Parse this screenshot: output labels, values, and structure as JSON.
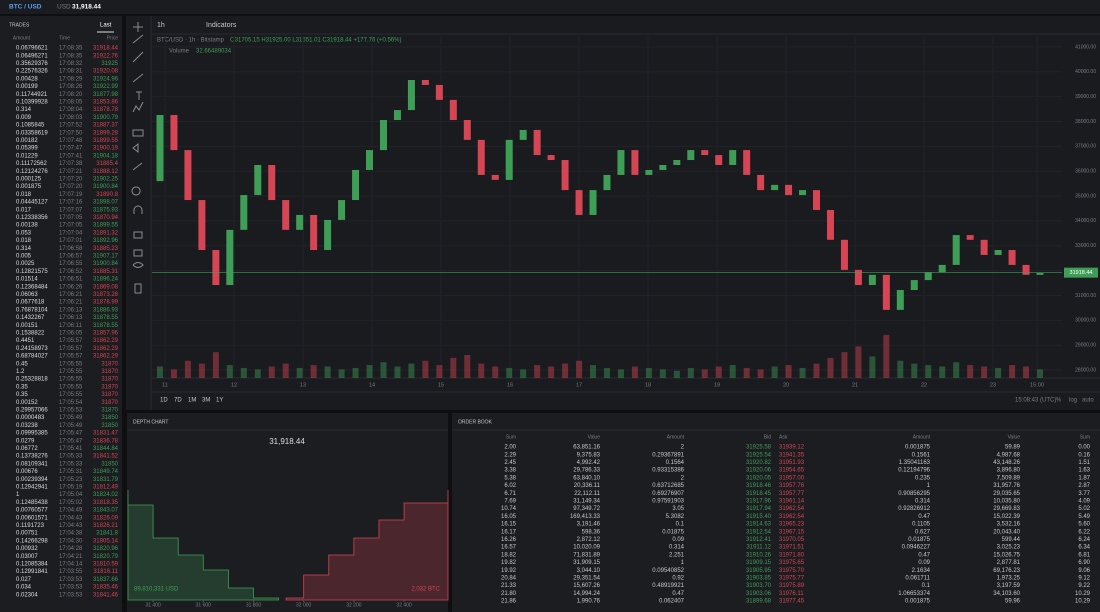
{
  "header": {
    "pair": "BTC / USD",
    "currency": "USD",
    "price": "31,918.44"
  },
  "trades": {
    "title": "TRADES",
    "tab": "Last",
    "columns": [
      "Amount",
      "Time",
      "Price"
    ],
    "rows": [
      [
        "0.06796621",
        "17:08:35",
        31918.44
      ],
      [
        "0.06496271",
        "17:08:35",
        31922.76
      ],
      [
        "0.35629376",
        "17:08:32",
        31925.0
      ],
      [
        "0.22576326",
        "17:08:31",
        31920.08
      ],
      [
        "0.00428",
        "17:08:29",
        31924.96
      ],
      [
        "0.00199",
        "17:08:26",
        31922.99
      ],
      [
        "0.11744921",
        "17:08:20",
        31877.98
      ],
      [
        "0.10399928",
        "17:08:05",
        31853.86
      ],
      [
        "0.314",
        "17:08:04",
        31878.78
      ],
      [
        "0.009",
        "17:08:03",
        31900.79
      ],
      [
        "0.1085845",
        "17:07:52",
        31887.37
      ],
      [
        "0.03358619",
        "17:07:50",
        31899.28
      ],
      [
        "0.00182",
        "17:07:48",
        31899.55
      ],
      [
        "0.05399",
        "17:07:47",
        31900.19
      ],
      [
        "0.01229",
        "17:07:41",
        31904.18
      ],
      [
        "0.11172562",
        "17:07:38",
        31885.4
      ],
      [
        "0.12124276",
        "17:07:21",
        31888.12
      ],
      [
        "0.000125",
        "17:07:20",
        31902.25
      ],
      [
        "0.001875",
        "17:07:20",
        31900.84
      ],
      [
        "0.018",
        "17:07:19",
        31890.8
      ],
      [
        "0.04445127",
        "17:07:16",
        31898.07
      ],
      [
        "0.017",
        "17:07:07",
        31875.93
      ],
      [
        "0.12338356",
        "17:07:05",
        31870.94
      ],
      [
        "0.00138",
        "17:07:05",
        31899.55
      ],
      [
        "0.053",
        "17:07:04",
        31891.32
      ],
      [
        "0.018",
        "17:07:01",
        31892.96
      ],
      [
        "0.314",
        "17:06:58",
        31885.23
      ],
      [
        "0.005",
        "17:06:57",
        31907.17
      ],
      [
        "0.0025",
        "17:06:55",
        31900.84
      ],
      [
        "0.12821575",
        "17:06:52",
        31885.31
      ],
      [
        "0.01514",
        "17:06:51",
        31896.24
      ],
      [
        "0.12368484",
        "17:06:26",
        31869.08
      ],
      [
        "0.06063",
        "17:06:21",
        31873.28
      ],
      [
        "0.0677618",
        "17:06:21",
        31878.99
      ],
      [
        "0.76878104",
        "17:06:13",
        31886.93
      ],
      [
        "0.1432267",
        "17:06:13",
        31878.55
      ],
      [
        "0.00151",
        "17:06:11",
        31878.55
      ],
      [
        "0.1538822",
        "17:06:05",
        31857.96
      ],
      [
        "0.4451",
        "17:05:57",
        31862.29
      ],
      [
        "0.24158973",
        "17:05:57",
        31862.29
      ],
      [
        "0.68784027",
        "17:05:57",
        31862.29
      ],
      [
        "0.45",
        "17:05:55",
        31870.0
      ],
      [
        "1.2",
        "17:05:55",
        31870.0
      ],
      [
        "0.25328818",
        "17:05:55",
        31870.0
      ],
      [
        "0.35",
        "17:05:55",
        31870.0
      ],
      [
        "0.35",
        "17:05:55",
        31870.0
      ],
      [
        "0.00152",
        "17:05:54",
        31870.0
      ],
      [
        "0.29957066",
        "17:05:53",
        31870.0
      ],
      [
        "0.0000483",
        "17:05:49",
        31850.0
      ],
      [
        "0.03238",
        "17:05:49",
        31850.0
      ],
      [
        "0.09995385",
        "17:05:47",
        31831.47
      ],
      [
        "0.0279",
        "17:05:47",
        31836.78
      ],
      [
        "0.06772",
        "17:05:41",
        31844.84
      ],
      [
        "0.13738276",
        "17:05:33",
        31841.52
      ],
      [
        "0.08109341",
        "17:05:33",
        31850.0
      ],
      [
        "0.00676",
        "17:05:31",
        31849.74
      ],
      [
        "0.00239394",
        "17:05:23",
        31831.79
      ],
      [
        "0.12942941",
        "17:05:19",
        31812.49
      ],
      [
        "1",
        "17:05:04",
        31824.02
      ],
      [
        "0.12485438",
        "17:05:02",
        31818.35
      ],
      [
        "0.00760577",
        "17:04:49",
        31843.07
      ],
      [
        "0.00601571",
        "17:04:43",
        31826.09
      ],
      [
        "0.1191723",
        "17:04:43",
        31826.21
      ],
      [
        "0.00751",
        "17:04:38",
        31841.8
      ],
      [
        "0.14266298",
        "17:04:30",
        31805.14
      ],
      [
        "0.00932",
        "17:04:28",
        31820.96
      ],
      [
        "0.03007",
        "17:04:21",
        31820.79
      ],
      [
        "0.12085384",
        "17:04:14",
        31810.59
      ],
      [
        "0.12991841",
        "17:03:55",
        31816.11
      ],
      [
        "0.027",
        "17:03:53",
        31837.66
      ],
      [
        "0.034",
        "17:03:53",
        31835.46
      ],
      [
        "0.02304",
        "17:03:53",
        31841.46
      ]
    ]
  },
  "toolbar": {
    "interval": "1h",
    "indicators": "Indicators"
  },
  "price_chart": {
    "type": "candlestick",
    "legend": "BTC/USD · 1h · Bitstamp",
    "ohlc": "O31705.15 H31925.00 L31651.01 C31918.44 +177.76 (+0.56%)",
    "volume_label": "Volume",
    "volume_value": "32.66489034",
    "up_color": "#3f9e56",
    "down_color": "#d64553",
    "open": 35600,
    "close": [
      38260,
      36850,
      34840,
      32830,
      31420,
      33640,
      35040,
      36250,
      34840,
      33640,
      34240,
      32830,
      34040,
      34840,
      36050,
      36850,
      38060,
      38460,
      39670,
      39470,
      38870,
      38060,
      37260,
      35850,
      35650,
      37260,
      37660,
      36650,
      36450,
      35240,
      34240,
      35240,
      35850,
      36850,
      35850,
      36050,
      36250,
      36450,
      36850,
      36650,
      36250,
      36850,
      35850,
      35240,
      35450,
      35040,
      35240,
      34440,
      33240,
      32030,
      31420,
      31830,
      30420,
      31220,
      31620,
      31940,
      32230,
      33430,
      33240,
      32630,
      32830,
      32230,
      31830,
      31918.44
    ],
    "volume": [
      8,
      6,
      12,
      10,
      18,
      9,
      7,
      6,
      8,
      10,
      7,
      9,
      8,
      6,
      7,
      9,
      11,
      8,
      10,
      12,
      9,
      14,
      16,
      10,
      8,
      7,
      6,
      9,
      8,
      10,
      12,
      9,
      7,
      6,
      8,
      7,
      6,
      5,
      7,
      6,
      8,
      9,
      7,
      6,
      8,
      9,
      7,
      10,
      14,
      18,
      22,
      15,
      30,
      12,
      10,
      9,
      8,
      11,
      9,
      8,
      7,
      9,
      8,
      6
    ],
    "volume_ylim": [
      0,
      80
    ],
    "ylim": [
      27680,
      41440
    ],
    "yticks": [
      {
        "value": 41000,
        "label": "41000.00"
      },
      {
        "value": 40000,
        "label": "40000.00"
      },
      {
        "value": 39000,
        "label": "39000.00"
      },
      {
        "value": 38000,
        "label": "38000.00"
      },
      {
        "value": 37000,
        "label": "37000.00"
      },
      {
        "value": 36000,
        "label": "36000.00"
      },
      {
        "value": 35000,
        "label": "35000.00"
      },
      {
        "value": 34000,
        "label": "34000.00"
      },
      {
        "value": 33000,
        "label": "33000.00"
      },
      {
        "value": 32000,
        "label": "32000.00"
      },
      {
        "value": 31000,
        "label": "31000.00"
      },
      {
        "value": 30000,
        "label": "30000.00"
      },
      {
        "value": 29000,
        "label": "29000.00"
      },
      {
        "value": 28000,
        "label": "28000.00"
      }
    ],
    "last_price": {
      "value": 31918.44,
      "label": "31918.44"
    },
    "xticks": [
      "11",
      "12",
      "13",
      "14",
      "15",
      "16",
      "17",
      "18",
      "19",
      "20",
      "21",
      "22",
      "23",
      "15:00"
    ],
    "timeframes": [
      "1D",
      "7D",
      "1M",
      "3M",
      "1Y"
    ],
    "clock": "15:08:43 (UTC)",
    "scale_options": [
      "%",
      "log",
      "auto"
    ]
  },
  "depth_chart": {
    "type": "depth",
    "title": "DEPTH CHART",
    "mid_price": "31,918.44",
    "bid_total": "89,810,331 USD",
    "ask_total": "2,032 BTC",
    "bids": {
      "prices": [
        31300,
        31400,
        31500,
        31600,
        31700,
        31800,
        31900
      ],
      "depth": [
        110,
        95,
        62,
        45,
        30,
        12,
        2
      ],
      "color": "#3f9e56"
    },
    "asks": {
      "prices": [
        31930,
        32000,
        32100,
        32200,
        32300,
        32400,
        32575
      ],
      "depth": [
        2,
        25,
        45,
        62,
        80,
        97,
        110
      ],
      "color": "#d64553"
    },
    "xlim": [
      31300,
      32575
    ],
    "ylim": [
      0,
      170
    ],
    "xticks": [
      {
        "value": 31400,
        "label": "31 400"
      },
      {
        "value": 31600,
        "label": "31 600"
      },
      {
        "value": 31800,
        "label": "31 800"
      },
      {
        "value": 32000,
        "label": "32 000"
      },
      {
        "value": 32200,
        "label": "32 200"
      },
      {
        "value": 32400,
        "label": "32 400"
      }
    ]
  },
  "order_book": {
    "title": "ORDER BOOK",
    "columns": [
      "Sum",
      "Value",
      "Amount",
      "Bid",
      "Ask",
      "Amount",
      "Value",
      "Sum"
    ],
    "rows": [
      [
        "2.00",
        "63,851.16",
        "2",
        "31925.58",
        "31939.12",
        "0.001875",
        "59.89",
        "0.00"
      ],
      [
        "2.29",
        "9,375.83",
        "0.29367891",
        "31925.54",
        "31941.35",
        "0.1561",
        "4,987.68",
        "0.16"
      ],
      [
        "2.45",
        "4,992.42",
        "0.1564",
        "31920.82",
        "31951.93",
        "1.35041163",
        "43,148.26",
        "1.51"
      ],
      [
        "3.38",
        "29,786.33",
        "0.93315386",
        "31920.06",
        "31954.65",
        "0.12194796",
        "3,896.80",
        "1.63"
      ],
      [
        "5.38",
        "63,840.10",
        "2",
        "31920.05",
        "31957.00",
        "0.235",
        "7,509.89",
        "1.87"
      ],
      [
        "6.02",
        "20,336.11",
        "0.63712685",
        "31918.46",
        "31957.76",
        "1",
        "31,957.76",
        "2.87"
      ],
      [
        "6.71",
        "22,112.11",
        "0.69276907",
        "31918.45",
        "31957.77",
        "0.90856295",
        "29,035.65",
        "3.77"
      ],
      [
        "7.69",
        "31,149.34",
        "0.97591903",
        "31917.96",
        "31961.14",
        "0.314",
        "10,035.80",
        "4.09"
      ],
      [
        "10.74",
        "97,349.72",
        "3.05",
        "31917.94",
        "31962.54",
        "0.92826912",
        "29,669.83",
        "5.02"
      ],
      [
        "16.05",
        "169,413.33",
        "5.3082",
        "31915.40",
        "31962.54",
        "0.47",
        "15,022.39",
        "5.49"
      ],
      [
        "16.15",
        "3,191.46",
        "0.1",
        "31914.63",
        "31965.23",
        "0.1105",
        "3,532.16",
        "5.60"
      ],
      [
        "16.17",
        "598.36",
        "0.01875",
        "31912.54",
        "31967.15",
        "0.627",
        "20,043.40",
        "6.22"
      ],
      [
        "16.26",
        "2,872.12",
        "0.09",
        "31912.41",
        "31970.05",
        "0.01875",
        "599.44",
        "6.24"
      ],
      [
        "16.57",
        "10,020.09",
        "0.314",
        "31911.12",
        "31971.51",
        "0.0946227",
        "3,025.23",
        "6.34"
      ],
      [
        "18.82",
        "71,831.89",
        "2.251",
        "31910.26",
        "31971.80",
        "0.47",
        "15,026.75",
        "6.81"
      ],
      [
        "19.82",
        "31,909.15",
        "1",
        "31909.15",
        "31975.65",
        "0.09",
        "2,877.81",
        "6.90"
      ],
      [
        "19.92",
        "3,044.10",
        "0.09540852",
        "31905.95",
        "31975.70",
        "2.1634",
        "69,176.23",
        "9.06"
      ],
      [
        "20.84",
        "29,351.54",
        "0.92",
        "31903.85",
        "31975.77",
        "0.061711",
        "1,973.25",
        "9.12"
      ],
      [
        "21.33",
        "15,607.26",
        "0.48919921",
        "31903.70",
        "31975.89",
        "0.1",
        "3,197.59",
        "9.22"
      ],
      [
        "21.80",
        "14,994.24",
        "0.47",
        "31903.06",
        "31976.11",
        "1.06653374",
        "34,103.60",
        "10.29"
      ],
      [
        "21.86",
        "1,990.76",
        "0.062407",
        "31899.68",
        "31977.45",
        "0.001875",
        "59.96",
        "10.29"
      ]
    ]
  }
}
